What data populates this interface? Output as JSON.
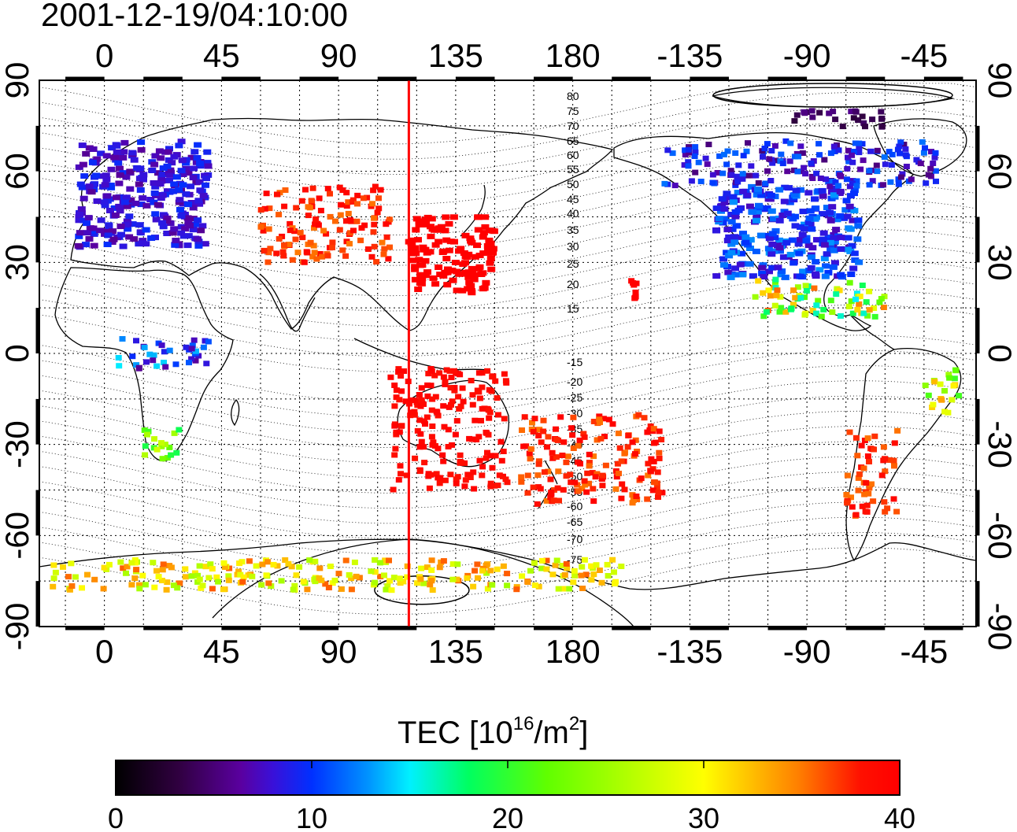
{
  "title": "2001-12-19/04:10:00",
  "map": {
    "lon_ticks": [
      {
        "lon": 0,
        "label": "0"
      },
      {
        "lon": 45,
        "label": "45"
      },
      {
        "lon": 90,
        "label": "90"
      },
      {
        "lon": 135,
        "label": "135"
      },
      {
        "lon": 180,
        "label": "180"
      },
      {
        "lon": 225,
        "label": "-135"
      },
      {
        "lon": 270,
        "label": "-90"
      },
      {
        "lon": 315,
        "label": "-45"
      }
    ],
    "lat_ticks": [
      {
        "lat": 90,
        "label": "90"
      },
      {
        "lat": 60,
        "label": "60"
      },
      {
        "lat": 30,
        "label": "30"
      },
      {
        "lat": 0,
        "label": "0"
      },
      {
        "lat": -30,
        "label": "-30"
      },
      {
        "lat": -60,
        "label": "-60"
      },
      {
        "lat": -90,
        "label": "-90"
      }
    ],
    "lon_range": [
      -25,
      335
    ],
    "lat_range": [
      -90,
      90
    ],
    "grid": "dotted, 15 degree",
    "meridian_marker_lon": 117,
    "meridian_marker_color": "#ff0000",
    "magnetic_lat_labels_north": [
      "80",
      "75",
      "70",
      "65",
      "60",
      "55",
      "50",
      "45",
      "40",
      "35",
      "30",
      "25",
      "20",
      "15"
    ],
    "magnetic_lat_labels_south": [
      "-15",
      "-20",
      "-25",
      "-30",
      "-35",
      "-40",
      "-45",
      "-50",
      "-55",
      "-60",
      "-65",
      "-70",
      "-75"
    ]
  },
  "colorbar": {
    "label_main": "TEC  [10",
    "label_sup1": "16",
    "label_mid": "/m",
    "label_sup2": "2",
    "label_end": "]",
    "ticks": [
      "0",
      "10",
      "20",
      "30",
      "40"
    ],
    "range": [
      0,
      40
    ],
    "colors": [
      "#000000",
      "#300040",
      "#5a00a0",
      "#3a10d8",
      "#0030ff",
      "#0090ff",
      "#00f0ff",
      "#00ff60",
      "#60ff00",
      "#ffff00",
      "#ff8000",
      "#ff1000",
      "#ff0000"
    ]
  },
  "tec_clusters": [
    {
      "region": "Europe",
      "lon": [
        -10,
        40
      ],
      "lat": [
        35,
        70
      ],
      "tec": [
        6,
        10
      ]
    },
    {
      "region": "North America",
      "lon": [
        235,
        290
      ],
      "lat": [
        25,
        55
      ],
      "tec": [
        7,
        13
      ]
    },
    {
      "region": "Canada",
      "lon": [
        215,
        320
      ],
      "lat": [
        55,
        70
      ],
      "tec": [
        5,
        12
      ]
    },
    {
      "region": "Arctic Canada",
      "lon": [
        265,
        300
      ],
      "lat": [
        74,
        80
      ],
      "tec": [
        3,
        6
      ]
    },
    {
      "region": "Mexico / Caribbean",
      "lon": [
        250,
        300
      ],
      "lat": [
        12,
        25
      ],
      "tec": [
        15,
        36
      ]
    },
    {
      "region": "East Asia",
      "lon": [
        117,
        150
      ],
      "lat": [
        20,
        45
      ],
      "tec": [
        40,
        40
      ]
    },
    {
      "region": "Central Asia",
      "lon": [
        60,
        110
      ],
      "lat": [
        30,
        55
      ],
      "tec": [
        35,
        40
      ]
    },
    {
      "region": "Indonesia / Australia",
      "lon": [
        110,
        155
      ],
      "lat": [
        -45,
        -5
      ],
      "tec": [
        38,
        40
      ]
    },
    {
      "region": "South Pacific",
      "lon": [
        160,
        215
      ],
      "lat": [
        -50,
        -20
      ],
      "tec": [
        35,
        40
      ]
    },
    {
      "region": "Hawaii",
      "lon": [
        202,
        205
      ],
      "lat": [
        18,
        24
      ],
      "tec": [
        40,
        40
      ]
    },
    {
      "region": "South America",
      "lon": [
        285,
        305
      ],
      "lat": [
        -55,
        -25
      ],
      "tec": [
        35,
        40
      ]
    },
    {
      "region": "Brazil",
      "lon": [
        315,
        330
      ],
      "lat": [
        -20,
        -5
      ],
      "tec": [
        20,
        34
      ]
    },
    {
      "region": "South Africa",
      "lon": [
        15,
        30
      ],
      "lat": [
        -35,
        -25
      ],
      "tec": [
        18,
        28
      ]
    },
    {
      "region": "Central Africa",
      "lon": [
        5,
        40
      ],
      "lat": [
        -5,
        5
      ],
      "tec": [
        6,
        15
      ]
    },
    {
      "region": "Antarctic coast",
      "lon": [
        -20,
        200
      ],
      "lat": [
        -78,
        -68
      ],
      "tec": [
        25,
        36
      ]
    }
  ]
}
